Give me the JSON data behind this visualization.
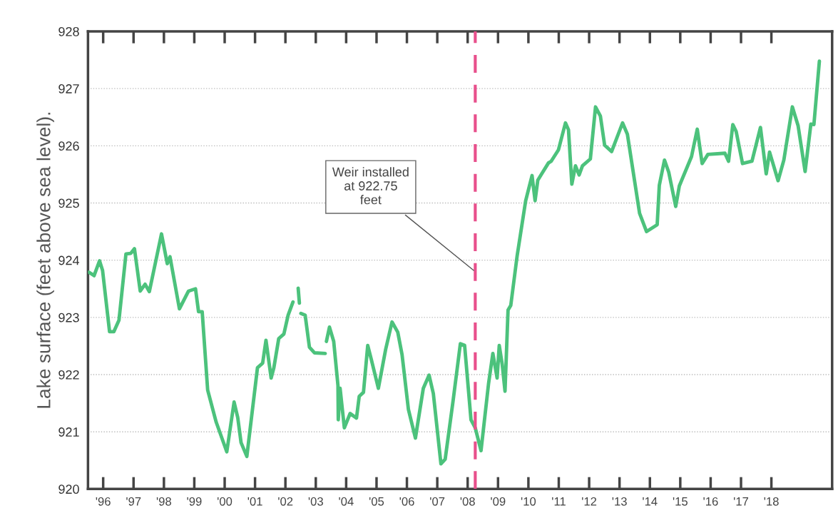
{
  "chart_data": {
    "type": "line",
    "ylabel": "Lake surface (feet above sea level).",
    "xlim": [
      1995.5,
      2020
    ],
    "xticks": [
      {
        "value": 1996,
        "label": "'96"
      },
      {
        "value": 1997,
        "label": "'97"
      },
      {
        "value": 1998,
        "label": "'98"
      },
      {
        "value": 1999,
        "label": "'99"
      },
      {
        "value": 2000,
        "label": "'00"
      },
      {
        "value": 2001,
        "label": "'01"
      },
      {
        "value": 2002,
        "label": "'02"
      },
      {
        "value": 2003,
        "label": "'03"
      },
      {
        "value": 2004,
        "label": "'04"
      },
      {
        "value": 2005,
        "label": "'05"
      },
      {
        "value": 2006,
        "label": "'06"
      },
      {
        "value": 2007,
        "label": "'07"
      },
      {
        "value": 2008,
        "label": "'08"
      },
      {
        "value": 2009,
        "label": "'09"
      },
      {
        "value": 2010,
        "label": "'10"
      },
      {
        "value": 2011,
        "label": "'11"
      },
      {
        "value": 2012,
        "label": "'12"
      },
      {
        "value": 2013,
        "label": "'13"
      },
      {
        "value": 2014,
        "label": "'14"
      },
      {
        "value": 2015,
        "label": "'15"
      },
      {
        "value": 2016,
        "label": "'16"
      },
      {
        "value": 2017,
        "label": "'17"
      },
      {
        "value": 2018,
        "label": "'18"
      }
    ],
    "ylim": [
      920,
      928
    ],
    "yticks": [
      920,
      921,
      922,
      923,
      924,
      925,
      926,
      927,
      928
    ],
    "grid": "y",
    "marker": "none",
    "line_style": "solid",
    "series": [
      {
        "color": "#4cc27c",
        "x": [
          1995.53,
          1995.7,
          1995.88,
          1995.98,
          1996.21,
          1996.35,
          1996.52,
          1996.75,
          1996.91,
          1997.03,
          1997.22,
          1997.38,
          1997.52,
          1997.92,
          1998.11,
          1998.2,
          1998.51,
          1998.81,
          1999.04,
          1999.14,
          1999.26,
          1999.44,
          1999.72,
          2000.07,
          2000.31,
          2000.43,
          2000.54,
          2000.73,
          2001.08,
          2001.25,
          2001.36,
          2001.53,
          2001.62,
          2001.78,
          2001.95,
          2002.09,
          2002.25,
          2002.33,
          2002.42,
          2002.46,
          2002.48,
          2002.51,
          2002.65,
          2002.79,
          2002.96,
          2003.31,
          2003.33,
          2003.35,
          2003.45,
          2003.59,
          2003.73,
          2003.74,
          2003.8,
          2003.94,
          2004.13,
          2004.34,
          2004.43,
          2004.57,
          2004.71,
          2004.83,
          2005.06,
          2005.3,
          2005.51,
          2005.7,
          2005.84,
          2006.05,
          2006.28,
          2006.54,
          2006.73,
          2006.87,
          2007.12,
          2007.26,
          2007.52,
          2007.76,
          2007.9,
          2008.11,
          2008.25,
          2008.44,
          2008.69,
          2008.83,
          2008.97,
          2009.04,
          2009.14,
          2009.23,
          2009.33,
          2009.42,
          2009.63,
          2009.91,
          2010.12,
          2010.22,
          2010.31,
          2010.66,
          2010.75,
          2010.99,
          2011.22,
          2011.32,
          2011.43,
          2011.55,
          2011.67,
          2011.78,
          2012.04,
          2012.21,
          2012.37,
          2012.51,
          2012.74,
          2013.1,
          2013.26,
          2013.66,
          2013.89,
          2014.24,
          2014.31,
          2014.48,
          2014.62,
          2014.85,
          2014.97,
          2015.37,
          2015.56,
          2015.72,
          2015.91,
          2016.47,
          2016.59,
          2016.73,
          2016.84,
          2017.05,
          2017.36,
          2017.64,
          2017.83,
          2017.94,
          2018.22,
          2018.41,
          2018.69,
          2018.88,
          2019.11,
          2019.3,
          2019.4,
          2019.58
        ],
        "values": [
          923.79,
          923.73,
          923.99,
          923.82,
          922.75,
          922.75,
          922.95,
          924.11,
          924.12,
          924.2,
          923.46,
          923.58,
          923.45,
          924.46,
          923.94,
          924.06,
          923.15,
          923.46,
          923.5,
          923.1,
          923.1,
          921.73,
          921.17,
          920.65,
          921.52,
          921.25,
          920.81,
          920.57,
          922.12,
          922.2,
          922.6,
          921.94,
          922.12,
          922.63,
          922.71,
          923.04,
          923.27,
          null,
          923.51,
          923.25,
          null,
          923.07,
          923.04,
          922.48,
          922.38,
          922.37,
          null,
          922.58,
          922.83,
          922.58,
          921.81,
          921.21,
          921.76,
          921.07,
          921.32,
          921.24,
          921.62,
          921.69,
          922.51,
          922.26,
          921.76,
          922.44,
          922.92,
          922.74,
          922.35,
          921.39,
          920.89,
          921.76,
          921.99,
          921.67,
          920.44,
          920.52,
          921.54,
          922.54,
          922.51,
          921.21,
          921.07,
          920.67,
          921.85,
          922.37,
          921.94,
          922.51,
          922.17,
          921.71,
          923.13,
          923.21,
          924.08,
          925.04,
          925.48,
          925.04,
          925.4,
          925.7,
          925.73,
          925.93,
          926.4,
          926.28,
          925.33,
          925.65,
          925.49,
          925.65,
          925.77,
          926.68,
          926.52,
          926.01,
          925.9,
          926.4,
          926.2,
          924.82,
          924.5,
          924.62,
          925.31,
          925.75,
          925.54,
          924.94,
          925.3,
          925.81,
          926.29,
          925.69,
          925.85,
          925.87,
          925.73,
          926.37,
          926.25,
          925.69,
          925.73,
          926.32,
          925.51,
          925.89,
          925.39,
          925.75,
          926.68,
          926.35,
          925.55,
          926.38,
          926.37,
          927.48
        ]
      }
    ],
    "ref_lines": [
      {
        "axis": "x",
        "value": 2008.25,
        "color": "#e8508c",
        "line_style": "dashed"
      }
    ],
    "annotations": [
      {
        "text": "Weir installed\nat 922.75\nfeet",
        "x": 2008.25,
        "y": 923.8
      }
    ]
  }
}
